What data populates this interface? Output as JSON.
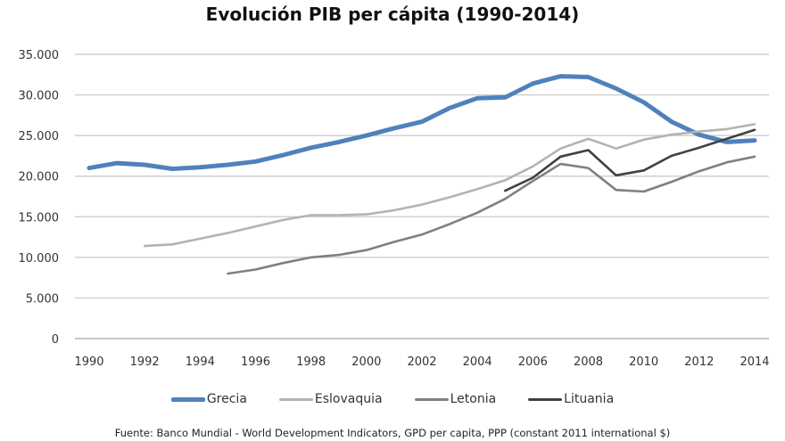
{
  "chart_data": {
    "type": "line",
    "title": "Evolución PIB per cápita (1990-2014)",
    "xlabel": "",
    "ylabel": "",
    "ylim": [
      0,
      35000
    ],
    "xlim": [
      1990,
      2014
    ],
    "grid": true,
    "legend_position": "bottom",
    "y_ticks": [
      0,
      5000,
      10000,
      15000,
      20000,
      25000,
      30000,
      35000
    ],
    "y_tick_labels": [
      "0",
      "5.000",
      "10.000",
      "15.000",
      "20.000",
      "25.000",
      "30.000",
      "35.000"
    ],
    "x_ticks": [
      1990,
      1992,
      1994,
      1996,
      1998,
      2000,
      2002,
      2004,
      2006,
      2008,
      2010,
      2012,
      2014
    ],
    "x_tick_labels": [
      "1990",
      "1992",
      "1994",
      "1996",
      "1998",
      "2000",
      "2002",
      "2004",
      "2006",
      "2008",
      "2010",
      "2012",
      "2014"
    ],
    "x": [
      1990,
      1991,
      1992,
      1993,
      1994,
      1995,
      1996,
      1997,
      1998,
      1999,
      2000,
      2001,
      2002,
      2003,
      2004,
      2005,
      2006,
      2007,
      2008,
      2009,
      2010,
      2011,
      2012,
      2013,
      2014
    ],
    "series": [
      {
        "name": "Grecia",
        "color": "#4f81bd",
        "values": [
          21000,
          21600,
          21400,
          20900,
          21100,
          21400,
          21800,
          22600,
          23500,
          24200,
          25000,
          25900,
          26700,
          28400,
          29600,
          29700,
          31400,
          32300,
          32200,
          30800,
          29100,
          26700,
          25100,
          24200,
          24400
        ]
      },
      {
        "name": "Eslovaquia",
        "color": "#b3b3b3",
        "values": [
          null,
          null,
          11400,
          11600,
          12300,
          13000,
          13800,
          14600,
          15200,
          15200,
          15300,
          15800,
          16500,
          17400,
          18400,
          19500,
          21200,
          23400,
          24600,
          23400,
          24500,
          25100,
          25500,
          25800,
          26400
        ]
      },
      {
        "name": "Letonia",
        "color": "#808080",
        "values": [
          null,
          null,
          null,
          null,
          null,
          8000,
          8500,
          9300,
          10000,
          10300,
          10900,
          11900,
          12800,
          14100,
          15500,
          17200,
          19400,
          21500,
          21000,
          18300,
          18100,
          19300,
          20600,
          21700,
          22400
        ]
      },
      {
        "name": "Lituania",
        "color": "#404040",
        "values": [
          null,
          null,
          null,
          null,
          null,
          null,
          null,
          null,
          null,
          null,
          null,
          null,
          null,
          null,
          null,
          18200,
          19800,
          22400,
          23200,
          20100,
          20700,
          22500,
          23500,
          24600,
          25700
        ]
      }
    ],
    "source_note": "Fuente:  Banco Mundial - World Development  Indicators, GPD per capita, PPP (constant 2011 international $)"
  }
}
